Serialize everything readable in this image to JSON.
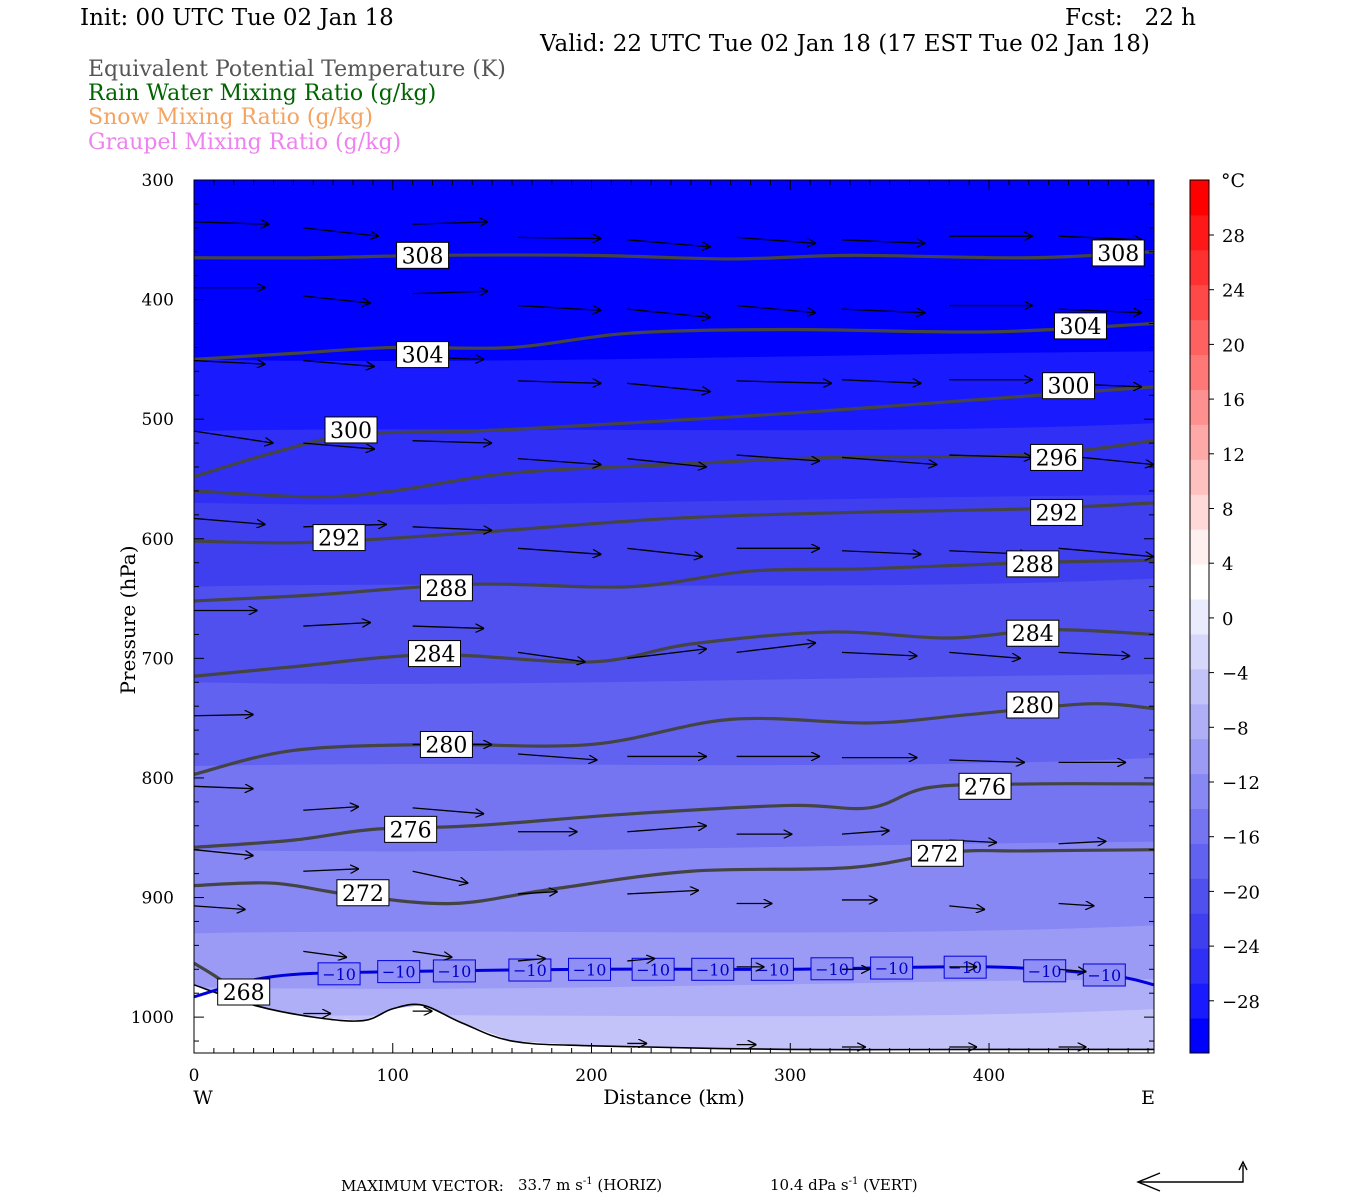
{
  "header": {
    "init": "Init: 00 UTC Tue 02 Jan 18",
    "fcst": "Fcst:   22 h",
    "valid": "Valid: 22 UTC Tue 02 Jan 18 (17 EST Tue 02 Jan 18)"
  },
  "legend": [
    {
      "label": "Equivalent Potential Temperature (K)",
      "color": "#555555"
    },
    {
      "label": "Rain Water Mixing Ratio (g/kg)",
      "color": "#006400"
    },
    {
      "label": "Snow Mixing Ratio (g/kg)",
      "color": "#f4a460"
    },
    {
      "label": "Graupel Mixing Ratio (g/kg)",
      "color": "#ee82ee"
    }
  ],
  "chart_data": {
    "type": "cross-section",
    "ylabel": "Pressure (hPa)",
    "xlabel": "Distance (km)",
    "x_left_label": "W",
    "x_right_label": "E",
    "xlim": [
      0,
      483
    ],
    "ylim": [
      300,
      1030
    ],
    "y_log_scale": false,
    "xticks": [
      0,
      100,
      200,
      300,
      400
    ],
    "yticks": [
      300,
      400,
      500,
      600,
      700,
      800,
      900,
      1000
    ],
    "theta_e_contours": [
      {
        "value": 308,
        "points": [
          [
            0,
            365
          ],
          [
            60,
            365
          ],
          [
            120,
            363
          ],
          [
            200,
            363
          ],
          [
            270,
            366
          ],
          [
            330,
            363
          ],
          [
            420,
            365
          ],
          [
            483,
            360
          ]
        ]
      },
      {
        "value": 304,
        "points": [
          [
            0,
            450
          ],
          [
            50,
            445
          ],
          [
            100,
            440
          ],
          [
            160,
            440
          ],
          [
            220,
            428
          ],
          [
            300,
            425
          ],
          [
            400,
            427
          ],
          [
            483,
            420
          ]
        ]
      },
      {
        "value": 300,
        "points": [
          [
            0,
            548
          ],
          [
            40,
            528
          ],
          [
            80,
            513
          ],
          [
            140,
            510
          ],
          [
            200,
            505
          ],
          [
            300,
            495
          ],
          [
            400,
            483
          ],
          [
            483,
            473
          ]
        ]
      },
      {
        "value": 296,
        "points": [
          [
            0,
            560
          ],
          [
            60,
            565
          ],
          [
            100,
            560
          ],
          [
            160,
            545
          ],
          [
            240,
            538
          ],
          [
            320,
            532
          ],
          [
            420,
            530
          ],
          [
            483,
            518
          ]
        ]
      },
      {
        "value": 292,
        "points": [
          [
            0,
            602
          ],
          [
            60,
            603
          ],
          [
            140,
            595
          ],
          [
            240,
            583
          ],
          [
            330,
            578
          ],
          [
            420,
            575
          ],
          [
            483,
            570
          ]
        ]
      },
      {
        "value": 288,
        "points": [
          [
            0,
            652
          ],
          [
            60,
            647
          ],
          [
            140,
            638
          ],
          [
            220,
            640
          ],
          [
            280,
            627
          ],
          [
            340,
            625
          ],
          [
            420,
            620
          ],
          [
            483,
            618
          ]
        ]
      },
      {
        "value": 284,
        "points": [
          [
            0,
            715
          ],
          [
            50,
            707
          ],
          [
            120,
            697
          ],
          [
            200,
            703
          ],
          [
            250,
            688
          ],
          [
            320,
            678
          ],
          [
            380,
            683
          ],
          [
            430,
            676
          ],
          [
            483,
            680
          ]
        ]
      },
      {
        "value": 280,
        "points": [
          [
            0,
            797
          ],
          [
            50,
            777
          ],
          [
            120,
            772
          ],
          [
            200,
            772
          ],
          [
            270,
            751
          ],
          [
            340,
            754
          ],
          [
            390,
            747
          ],
          [
            450,
            738
          ],
          [
            483,
            742
          ]
        ]
      },
      {
        "value": 276,
        "points": [
          [
            0,
            858
          ],
          [
            50,
            852
          ],
          [
            90,
            843
          ],
          [
            140,
            840
          ],
          [
            220,
            830
          ],
          [
            300,
            823
          ],
          [
            340,
            825
          ],
          [
            370,
            808
          ],
          [
            420,
            805
          ],
          [
            483,
            805
          ]
        ]
      },
      {
        "value": 272,
        "points": [
          [
            0,
            890
          ],
          [
            40,
            888
          ],
          [
            80,
            898
          ],
          [
            130,
            905
          ],
          [
            180,
            893
          ],
          [
            250,
            878
          ],
          [
            330,
            875
          ],
          [
            380,
            862
          ],
          [
            420,
            861
          ],
          [
            483,
            860
          ]
        ]
      },
      {
        "value": 268,
        "points": [
          [
            0,
            955
          ],
          [
            10,
            965
          ],
          [
            30,
            988
          ]
        ]
      }
    ],
    "contour_labels": [
      {
        "text": "308",
        "x": 115,
        "p": 363
      },
      {
        "text": "308",
        "x": 465,
        "p": 361
      },
      {
        "text": "304",
        "x": 115,
        "p": 446
      },
      {
        "text": "304",
        "x": 446,
        "p": 422
      },
      {
        "text": "300",
        "x": 79,
        "p": 509
      },
      {
        "text": "300",
        "x": 440,
        "p": 472
      },
      {
        "text": "296",
        "x": 434,
        "p": 532
      },
      {
        "text": "292",
        "x": 73,
        "p": 599
      },
      {
        "text": "292",
        "x": 434,
        "p": 578
      },
      {
        "text": "288",
        "x": 127,
        "p": 641
      },
      {
        "text": "288",
        "x": 422,
        "p": 621
      },
      {
        "text": "284",
        "x": 121,
        "p": 696
      },
      {
        "text": "284",
        "x": 422,
        "p": 679
      },
      {
        "text": "280",
        "x": 127,
        "p": 772
      },
      {
        "text": "280",
        "x": 422,
        "p": 739
      },
      {
        "text": "276",
        "x": 109,
        "p": 843
      },
      {
        "text": "276",
        "x": 398,
        "p": 807
      },
      {
        "text": "272",
        "x": 85,
        "p": 896
      },
      {
        "text": "272",
        "x": 374,
        "p": 863
      },
      {
        "text": "268",
        "x": 25,
        "p": 979
      }
    ],
    "temperature_minus10_isotherm": {
      "label": "-10",
      "points": [
        [
          0,
          983
        ],
        [
          40,
          966
        ],
        [
          100,
          962
        ],
        [
          200,
          960
        ],
        [
          300,
          960
        ],
        [
          400,
          958
        ],
        [
          460,
          965
        ],
        [
          483,
          973
        ]
      ],
      "label_x": [
        73,
        103,
        131,
        169,
        199,
        231,
        261,
        291,
        321,
        351,
        388,
        428,
        458
      ]
    },
    "terrain": [
      [
        0,
        973
      ],
      [
        30,
        990
      ],
      [
        60,
        1000
      ],
      [
        85,
        1003
      ],
      [
        100,
        993
      ],
      [
        115,
        990
      ],
      [
        135,
        1005
      ],
      [
        160,
        1020
      ],
      [
        200,
        1024
      ],
      [
        300,
        1027
      ],
      [
        400,
        1027
      ],
      [
        483,
        1027
      ]
    ],
    "wind_vectors": [
      {
        "x": 0,
        "p": 335,
        "dx": 38,
        "dp": 2
      },
      {
        "x": 55,
        "p": 340,
        "dx": 38,
        "dp": 7
      },
      {
        "x": 110,
        "p": 337,
        "dx": 38,
        "dp": -2
      },
      {
        "x": 163,
        "p": 348,
        "dx": 42,
        "dp": 1
      },
      {
        "x": 218,
        "p": 350,
        "dx": 42,
        "dp": 6
      },
      {
        "x": 273,
        "p": 348,
        "dx": 40,
        "dp": 5
      },
      {
        "x": 326,
        "p": 350,
        "dx": 42,
        "dp": 3
      },
      {
        "x": 380,
        "p": 347,
        "dx": 42,
        "dp": 0
      },
      {
        "x": 435,
        "p": 347,
        "dx": 42,
        "dp": 3
      },
      {
        "x": 0,
        "p": 390,
        "dx": 36,
        "dp": 0
      },
      {
        "x": 55,
        "p": 397,
        "dx": 34,
        "dp": 6
      },
      {
        "x": 110,
        "p": 395,
        "dx": 38,
        "dp": -2
      },
      {
        "x": 163,
        "p": 405,
        "dx": 42,
        "dp": 4
      },
      {
        "x": 218,
        "p": 408,
        "dx": 42,
        "dp": 7
      },
      {
        "x": 273,
        "p": 405,
        "dx": 40,
        "dp": 6
      },
      {
        "x": 326,
        "p": 408,
        "dx": 42,
        "dp": 3
      },
      {
        "x": 380,
        "p": 405,
        "dx": 42,
        "dp": 0
      },
      {
        "x": 435,
        "p": 408,
        "dx": 42,
        "dp": 3
      },
      {
        "x": 0,
        "p": 451,
        "dx": 36,
        "dp": 3
      },
      {
        "x": 55,
        "p": 451,
        "dx": 36,
        "dp": 5
      },
      {
        "x": 110,
        "p": 448,
        "dx": 36,
        "dp": 2
      },
      {
        "x": 163,
        "p": 468,
        "dx": 42,
        "dp": 2
      },
      {
        "x": 218,
        "p": 470,
        "dx": 42,
        "dp": 7
      },
      {
        "x": 273,
        "p": 468,
        "dx": 48,
        "dp": 2
      },
      {
        "x": 326,
        "p": 467,
        "dx": 40,
        "dp": 3
      },
      {
        "x": 380,
        "p": 467,
        "dx": 42,
        "dp": 0
      },
      {
        "x": 435,
        "p": 470,
        "dx": 42,
        "dp": 3
      },
      {
        "x": 0,
        "p": 510,
        "dx": 40,
        "dp": 10
      },
      {
        "x": 55,
        "p": 520,
        "dx": 36,
        "dp": 5
      },
      {
        "x": 110,
        "p": 518,
        "dx": 40,
        "dp": 2
      },
      {
        "x": 163,
        "p": 533,
        "dx": 42,
        "dp": 5
      },
      {
        "x": 218,
        "p": 533,
        "dx": 40,
        "dp": 7
      },
      {
        "x": 273,
        "p": 530,
        "dx": 42,
        "dp": 5
      },
      {
        "x": 326,
        "p": 532,
        "dx": 48,
        "dp": 6
      },
      {
        "x": 380,
        "p": 530,
        "dx": 42,
        "dp": 2
      },
      {
        "x": 435,
        "p": 530,
        "dx": 48,
        "dp": 8
      },
      {
        "x": 0,
        "p": 583,
        "dx": 36,
        "dp": 5
      },
      {
        "x": 55,
        "p": 590,
        "dx": 42,
        "dp": -2
      },
      {
        "x": 110,
        "p": 590,
        "dx": 40,
        "dp": 3
      },
      {
        "x": 163,
        "p": 608,
        "dx": 42,
        "dp": 5
      },
      {
        "x": 218,
        "p": 608,
        "dx": 38,
        "dp": 7
      },
      {
        "x": 273,
        "p": 608,
        "dx": 42,
        "dp": 0
      },
      {
        "x": 326,
        "p": 610,
        "dx": 40,
        "dp": 3
      },
      {
        "x": 380,
        "p": 610,
        "dx": 40,
        "dp": 3
      },
      {
        "x": 435,
        "p": 608,
        "dx": 48,
        "dp": 7
      },
      {
        "x": 0,
        "p": 660,
        "dx": 32,
        "dp": 0
      },
      {
        "x": 55,
        "p": 673,
        "dx": 34,
        "dp": -3
      },
      {
        "x": 110,
        "p": 673,
        "dx": 36,
        "dp": 2
      },
      {
        "x": 163,
        "p": 695,
        "dx": 34,
        "dp": 8
      },
      {
        "x": 218,
        "p": 700,
        "dx": 40,
        "dp": -8
      },
      {
        "x": 273,
        "p": 695,
        "dx": 40,
        "dp": -8
      },
      {
        "x": 326,
        "p": 695,
        "dx": 38,
        "dp": 3
      },
      {
        "x": 380,
        "p": 695,
        "dx": 36,
        "dp": 5
      },
      {
        "x": 435,
        "p": 695,
        "dx": 36,
        "dp": 3
      },
      {
        "x": 0,
        "p": 748,
        "dx": 30,
        "dp": -1
      },
      {
        "x": 110,
        "p": 772,
        "dx": 40,
        "dp": 0
      },
      {
        "x": 163,
        "p": 780,
        "dx": 40,
        "dp": 5
      },
      {
        "x": 218,
        "p": 782,
        "dx": 40,
        "dp": 0
      },
      {
        "x": 273,
        "p": 782,
        "dx": 42,
        "dp": 0
      },
      {
        "x": 326,
        "p": 783,
        "dx": 38,
        "dp": 0
      },
      {
        "x": 380,
        "p": 785,
        "dx": 38,
        "dp": 2
      },
      {
        "x": 435,
        "p": 787,
        "dx": 34,
        "dp": 0
      },
      {
        "x": 0,
        "p": 807,
        "dx": 30,
        "dp": 2
      },
      {
        "x": 55,
        "p": 827,
        "dx": 28,
        "dp": -3
      },
      {
        "x": 110,
        "p": 825,
        "dx": 36,
        "dp": 5
      },
      {
        "x": 163,
        "p": 845,
        "dx": 30,
        "dp": 0
      },
      {
        "x": 218,
        "p": 845,
        "dx": 40,
        "dp": -5
      },
      {
        "x": 273,
        "p": 847,
        "dx": 28,
        "dp": 0
      },
      {
        "x": 326,
        "p": 847,
        "dx": 24,
        "dp": -3
      },
      {
        "x": 380,
        "p": 852,
        "dx": 24,
        "dp": 2
      },
      {
        "x": 435,
        "p": 855,
        "dx": 24,
        "dp": -2
      },
      {
        "x": 0,
        "p": 860,
        "dx": 30,
        "dp": 5
      },
      {
        "x": 55,
        "p": 878,
        "dx": 28,
        "dp": -2
      },
      {
        "x": 110,
        "p": 878,
        "dx": 28,
        "dp": 10
      },
      {
        "x": 163,
        "p": 897,
        "dx": 20,
        "dp": -2
      },
      {
        "x": 218,
        "p": 897,
        "dx": 36,
        "dp": -3
      },
      {
        "x": 273,
        "p": 905,
        "dx": 18,
        "dp": 0
      },
      {
        "x": 326,
        "p": 902,
        "dx": 18,
        "dp": 0
      },
      {
        "x": 380,
        "p": 907,
        "dx": 18,
        "dp": 3
      },
      {
        "x": 435,
        "p": 905,
        "dx": 18,
        "dp": 2
      },
      {
        "x": 0,
        "p": 907,
        "dx": 26,
        "dp": 3
      },
      {
        "x": 55,
        "p": 945,
        "dx": 22,
        "dp": 5
      },
      {
        "x": 110,
        "p": 945,
        "dx": 20,
        "dp": 5
      },
      {
        "x": 163,
        "p": 953,
        "dx": 14,
        "dp": -2
      },
      {
        "x": 218,
        "p": 953,
        "dx": 14,
        "dp": -2
      },
      {
        "x": 273,
        "p": 958,
        "dx": 14,
        "dp": 0
      },
      {
        "x": 326,
        "p": 960,
        "dx": 14,
        "dp": 0
      },
      {
        "x": 380,
        "p": 958,
        "dx": 14,
        "dp": 0
      },
      {
        "x": 435,
        "p": 960,
        "dx": 14,
        "dp": 2
      },
      {
        "x": 55,
        "p": 997,
        "dx": 14,
        "dp": 0
      },
      {
        "x": 110,
        "p": 995,
        "dx": 10,
        "dp": 0
      },
      {
        "x": 218,
        "p": 1022,
        "dx": 10,
        "dp": 0
      },
      {
        "x": 273,
        "p": 1023,
        "dx": 10,
        "dp": 0
      },
      {
        "x": 326,
        "p": 1025,
        "dx": 12,
        "dp": 0
      },
      {
        "x": 380,
        "p": 1025,
        "dx": 14,
        "dp": 0
      },
      {
        "x": 435,
        "p": 1025,
        "dx": 14,
        "dp": 0
      }
    ],
    "colorbar": {
      "unit": "°C",
      "tick_labels": [
        "28",
        "24",
        "20",
        "16",
        "12",
        "8",
        "4",
        "0",
        "-4",
        "-8",
        "-12",
        "-16",
        "-20",
        "-24",
        "-28"
      ],
      "colors": [
        "#0000ff",
        "#1a1aff",
        "#2f2ff5",
        "#3f3ff0",
        "#5050ee",
        "#6262f0",
        "#7575f2",
        "#8888f4",
        "#9b9bf6",
        "#afaff8",
        "#c3c3fa",
        "#d7d7fc",
        "#ebebfe",
        "#ffffff",
        "#fff0f0",
        "#ffd8d8",
        "#ffc0c0",
        "#ffa8a8",
        "#ff9090",
        "#ff7878",
        "#ff6060",
        "#ff4848",
        "#ff3030",
        "#ff1818",
        "#ff0000"
      ]
    },
    "temperature_shading_bands": [
      {
        "p_top": 300,
        "p_bot": 450,
        "color": "#0000ff"
      },
      {
        "p_top": 450,
        "p_bot": 510,
        "color": "#1a1aff"
      },
      {
        "p_top": 510,
        "p_bot": 570,
        "color": "#2f2ff5"
      },
      {
        "p_top": 570,
        "p_bot": 640,
        "color": "#3f3ff0"
      },
      {
        "p_top": 640,
        "p_bot": 720,
        "color": "#5050ee"
      },
      {
        "p_top": 720,
        "p_bot": 790,
        "color": "#6262f0"
      },
      {
        "p_top": 790,
        "p_bot": 860,
        "color": "#7575f2"
      },
      {
        "p_top": 860,
        "p_bot": 930,
        "color": "#8888f4"
      },
      {
        "p_top": 930,
        "p_bot": 975,
        "color": "#9b9bf6"
      },
      {
        "p_top": 975,
        "p_bot": 1000,
        "color": "#afaff8"
      },
      {
        "p_top": 1000,
        "p_bot": 1030,
        "color": "#c3c3fa"
      }
    ]
  },
  "footer": {
    "max_vector_label": "MAXIMUM VECTOR:",
    "horiz_value": "33.7 m s",
    "horiz_exp": "-1",
    "horiz_tag": "(HORIZ)",
    "vert_value": "10.4 dPa s",
    "vert_exp": "-1",
    "vert_tag": "(VERT)"
  }
}
